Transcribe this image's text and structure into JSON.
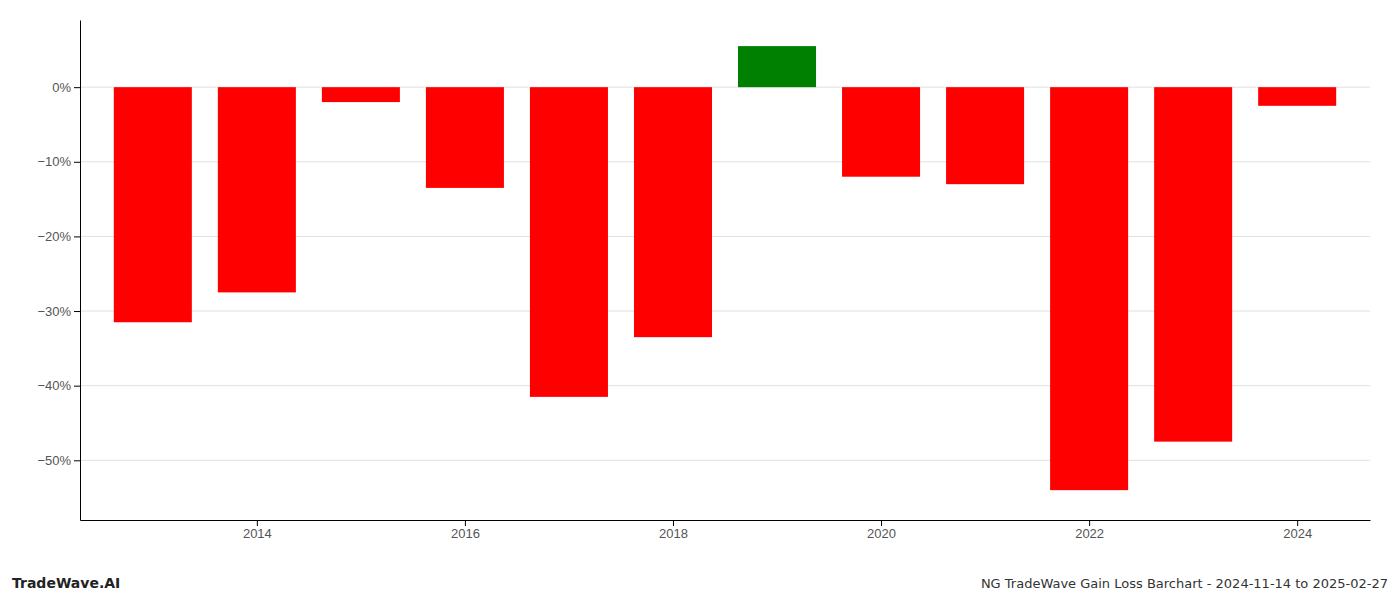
{
  "chart_data": {
    "type": "bar",
    "title": "NG TradeWave Gain Loss Barchart - 2024-11-14 to 2025-02-27",
    "annotations": [
      "TradeWave.AI"
    ],
    "x": [
      2013,
      2014,
      2015,
      2016,
      2017,
      2018,
      2019,
      2020,
      2021,
      2022,
      2023,
      2024
    ],
    "values": [
      -31.5,
      -27.5,
      -2.0,
      -13.5,
      -41.5,
      -33.5,
      5.5,
      -12.0,
      -13.0,
      -54.0,
      -47.5,
      -2.5
    ],
    "colors": [
      "#FF0000",
      "#FF0000",
      "#FF0000",
      "#FF0000",
      "#FF0000",
      "#FF0000",
      "#008000",
      "#FF0000",
      "#FF0000",
      "#FF0000",
      "#FF0000",
      "#FF0000"
    ],
    "xlim": [
      2012.3,
      2024.7
    ],
    "xticks": [
      2014,
      2016,
      2018,
      2020,
      2022,
      2024
    ],
    "ylim": [
      -58,
      9
    ],
    "yticks": [
      {
        "value": 0,
        "label": "0%"
      },
      {
        "value": -10,
        "label": "−10%"
      },
      {
        "value": -20,
        "label": "−20%"
      },
      {
        "value": -30,
        "label": "−30%"
      },
      {
        "value": -40,
        "label": "−40%"
      },
      {
        "value": -50,
        "label": "−50%"
      }
    ],
    "grid": true
  }
}
